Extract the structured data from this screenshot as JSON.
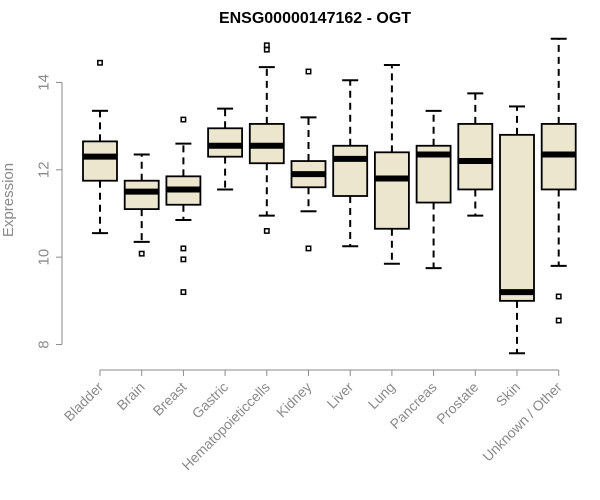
{
  "chart_data": {
    "type": "boxplot",
    "title": "ENSG00000147162 - OGT",
    "xlabel": "",
    "ylabel": "Expression",
    "ylim": [
      7.6,
      15.2
    ],
    "yticks": [
      8,
      10,
      12,
      14
    ],
    "categories": [
      "Bladder",
      "Brain",
      "Breast",
      "Gastric",
      "Hematopoietic cells",
      "Kidney",
      "Liver",
      "Lung",
      "Pancreas",
      "Prostate",
      "Skin",
      "Unknown / Other"
    ],
    "tick_labels": [
      "Bladder",
      "Brain",
      "Breast",
      "Gastric",
      "Hematopoieticcells",
      "Kidney",
      "Liver",
      "Lung",
      "Pancreas",
      "Prostate",
      "Skin",
      "Unknown / Other"
    ],
    "box_fill": "#ece6cf",
    "series": [
      {
        "name": "Bladder",
        "whisker_low": 10.55,
        "q1": 11.75,
        "median": 12.3,
        "q3": 12.65,
        "whisker_high": 13.35,
        "outliers": [
          14.45
        ]
      },
      {
        "name": "Brain",
        "whisker_low": 10.35,
        "q1": 11.1,
        "median": 11.5,
        "q3": 11.75,
        "whisker_high": 12.35,
        "outliers": [
          10.08
        ]
      },
      {
        "name": "Breast",
        "whisker_low": 10.85,
        "q1": 11.2,
        "median": 11.55,
        "q3": 11.85,
        "whisker_high": 12.6,
        "outliers": [
          13.15,
          10.2,
          9.95,
          9.2
        ]
      },
      {
        "name": "Gastric",
        "whisker_low": 11.55,
        "q1": 12.3,
        "median": 12.55,
        "q3": 12.95,
        "whisker_high": 13.4,
        "outliers": []
      },
      {
        "name": "Hematopoietic cells",
        "whisker_low": 10.95,
        "q1": 12.15,
        "median": 12.55,
        "q3": 13.05,
        "whisker_high": 14.35,
        "outliers": [
          14.85,
          14.75,
          10.6
        ]
      },
      {
        "name": "Kidney",
        "whisker_low": 11.05,
        "q1": 11.6,
        "median": 11.9,
        "q3": 12.2,
        "whisker_high": 13.2,
        "outliers": [
          14.25,
          10.2
        ]
      },
      {
        "name": "Liver",
        "whisker_low": 10.25,
        "q1": 11.4,
        "median": 12.25,
        "q3": 12.55,
        "whisker_high": 14.05,
        "outliers": []
      },
      {
        "name": "Lung",
        "whisker_low": 9.85,
        "q1": 10.65,
        "median": 11.8,
        "q3": 12.4,
        "whisker_high": 14.4,
        "outliers": []
      },
      {
        "name": "Pancreas",
        "whisker_low": 9.75,
        "q1": 11.25,
        "median": 12.35,
        "q3": 12.55,
        "whisker_high": 13.35,
        "outliers": []
      },
      {
        "name": "Prostate",
        "whisker_low": 10.95,
        "q1": 11.55,
        "median": 12.2,
        "q3": 13.05,
        "whisker_high": 13.75,
        "outliers": []
      },
      {
        "name": "Skin",
        "whisker_low": 7.8,
        "q1": 9.0,
        "median": 9.2,
        "q3": 12.8,
        "whisker_high": 13.45,
        "outliers": []
      },
      {
        "name": "Unknown / Other",
        "whisker_low": 9.8,
        "q1": 11.55,
        "median": 12.35,
        "q3": 13.05,
        "whisker_high": 15.0,
        "outliers": [
          9.1,
          8.55
        ]
      }
    ]
  }
}
